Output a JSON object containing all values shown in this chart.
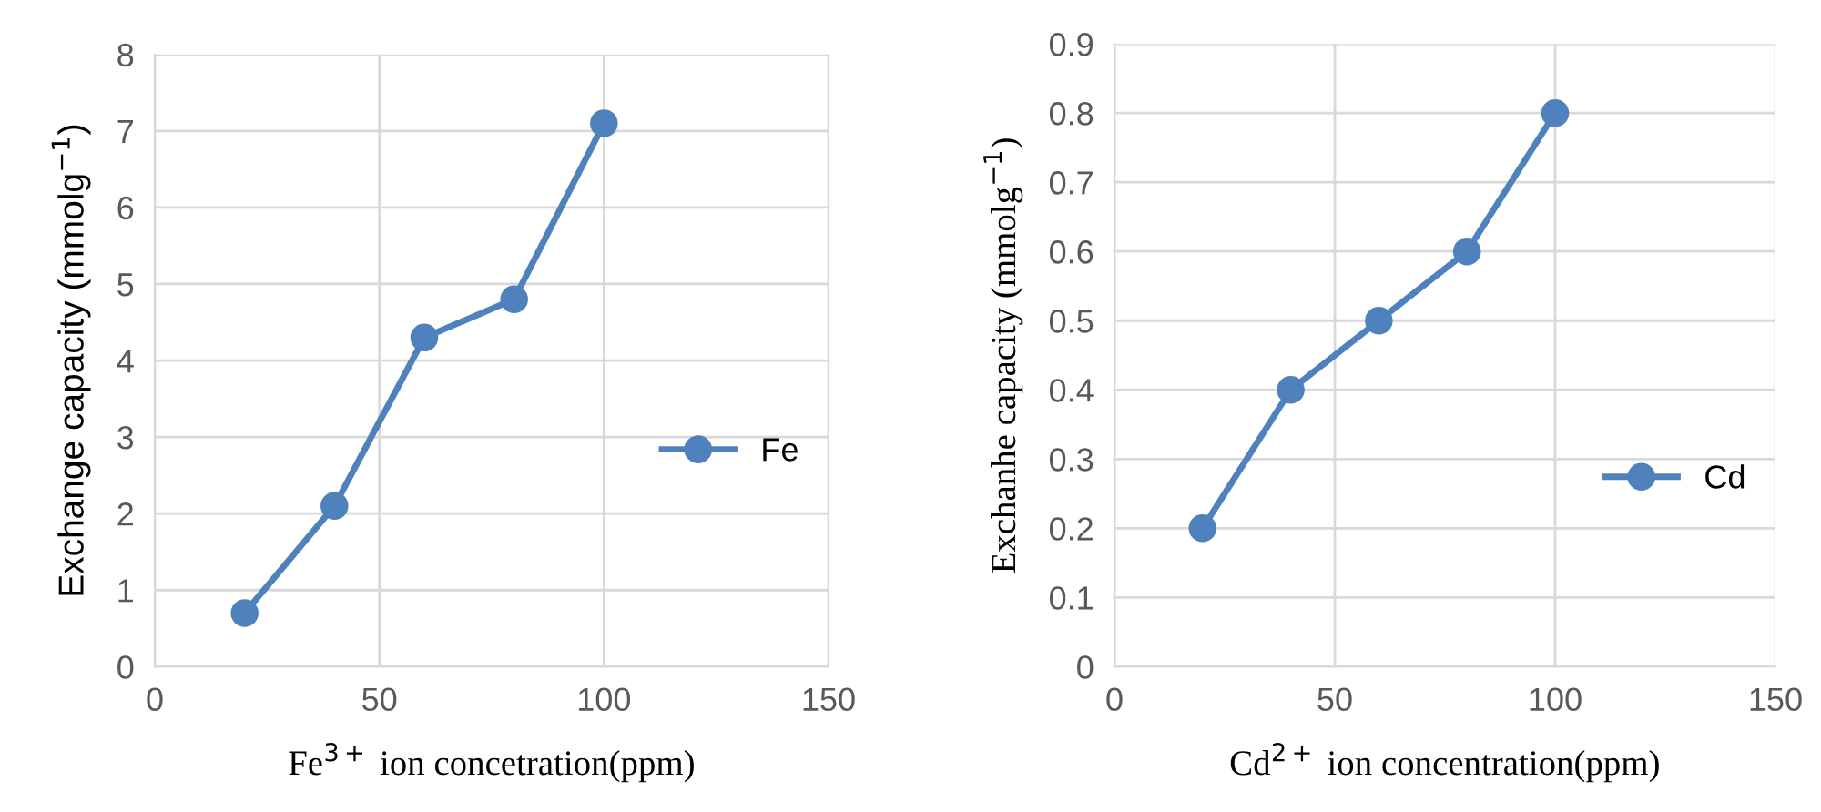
{
  "chart_data": [
    {
      "type": "line",
      "xlabel": "Fe$^{3+}$ ion concetration(ppm)",
      "ylabel": "Exchange capacity (mmolg$^{−1}$)",
      "x": [
        20,
        40,
        60,
        80,
        100
      ],
      "series": [
        {
          "name": "Fe",
          "color": "#4f81bd",
          "values": [
            0.7,
            2.1,
            4.3,
            4.8,
            7.1
          ]
        }
      ],
      "xlim": [
        0,
        150
      ],
      "xticks": [
        0,
        50,
        100,
        150
      ],
      "ylim": [
        0,
        8
      ],
      "yticks": [
        0,
        1,
        2,
        3,
        4,
        5,
        6,
        7,
        8
      ],
      "grid": true,
      "legend": "right",
      "marker": "circle",
      "line_style": "solid"
    },
    {
      "type": "line",
      "xlabel": "Cd$^{2+}$ ion concentration(ppm)",
      "ylabel": "Exchanhe capacity (mmolg$^{−1}$)",
      "x": [
        20,
        40,
        60,
        80,
        100
      ],
      "series": [
        {
          "name": "Cd",
          "color": "#4f81bd",
          "values": [
            0.2,
            0.4,
            0.5,
            0.6,
            0.8
          ]
        }
      ],
      "xlim": [
        0,
        150
      ],
      "xticks": [
        0,
        50,
        100,
        150
      ],
      "ylim": [
        0,
        0.9
      ],
      "yticks": [
        0,
        0.1,
        0.2,
        0.3,
        0.4,
        0.5,
        0.6,
        0.7,
        0.8,
        0.9
      ],
      "grid": true,
      "legend": "right",
      "marker": "circle",
      "line_style": "solid"
    }
  ]
}
